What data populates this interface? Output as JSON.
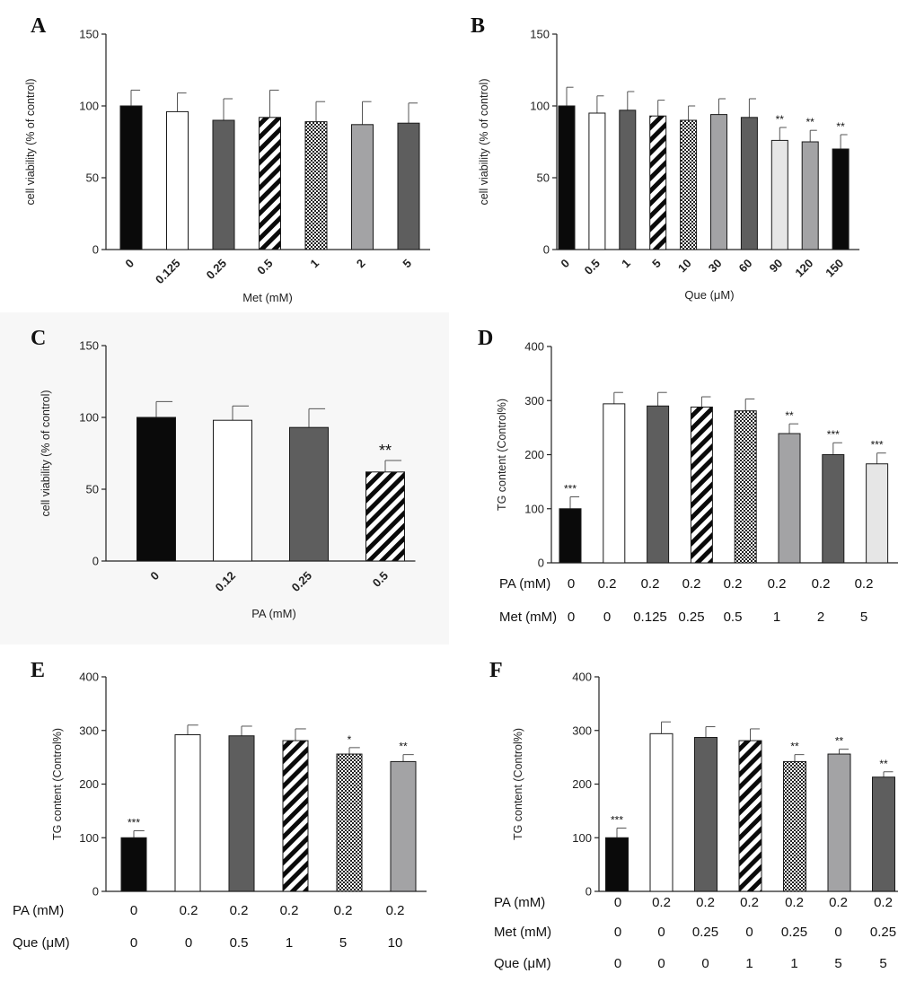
{
  "chart_data": [
    {
      "panel": "A",
      "type": "bar",
      "ylabel": "cell viability (% of control)",
      "xlabel": "Met (mM)",
      "ylim": [
        0,
        150
      ],
      "yticks": [
        0,
        50,
        100,
        150
      ],
      "categories": [
        "0",
        "0.125",
        "0.25",
        "0.5",
        "1",
        "2",
        "5"
      ],
      "values": [
        100,
        96,
        90,
        92,
        89,
        87,
        88
      ],
      "errors": [
        11,
        13,
        15,
        19,
        14,
        16,
        14
      ],
      "fills": [
        "black",
        "white",
        "dark",
        "diag",
        "check",
        "light",
        "dark"
      ],
      "annotations": [
        "",
        "",
        "",
        "",
        "",
        "",
        ""
      ]
    },
    {
      "panel": "B",
      "type": "bar",
      "ylabel": "cell viability (% of control)",
      "xlabel": "Que (μM)",
      "ylim": [
        0,
        150
      ],
      "yticks": [
        0,
        50,
        100,
        150
      ],
      "categories": [
        "0",
        "0.5",
        "1",
        "5",
        "10",
        "30",
        "60",
        "90",
        "120",
        "150"
      ],
      "values": [
        100,
        95,
        97,
        93,
        90,
        94,
        92,
        76,
        75,
        70
      ],
      "errors": [
        13,
        12,
        13,
        11,
        10,
        11,
        13,
        9,
        8,
        10
      ],
      "fills": [
        "black",
        "white",
        "dark",
        "diag",
        "check",
        "light",
        "dark",
        "pale",
        "light",
        "black"
      ],
      "annotations": [
        "",
        "",
        "",
        "",
        "",
        "",
        "",
        "**",
        "**",
        "**"
      ]
    },
    {
      "panel": "C",
      "type": "bar",
      "ylabel": "cell viability (% of control)",
      "xlabel": "PA (mM)",
      "ylim": [
        0,
        150
      ],
      "yticks": [
        0,
        50,
        100,
        150
      ],
      "categories": [
        "0",
        "0.12",
        "0.25",
        "0.5"
      ],
      "values": [
        100,
        98,
        93,
        62
      ],
      "errors": [
        11,
        10,
        13,
        8
      ],
      "fills": [
        "black",
        "white",
        "dark",
        "diag"
      ],
      "annotations": [
        "",
        "",
        "",
        "**"
      ]
    },
    {
      "panel": "D",
      "type": "bar",
      "ylabel": "TG content (Control%)",
      "ylim": [
        0,
        400
      ],
      "yticks": [
        0,
        100,
        200,
        300,
        400
      ],
      "values": [
        100,
        294,
        290,
        288,
        281,
        239,
        200,
        183
      ],
      "errors": [
        22,
        21,
        25,
        19,
        22,
        18,
        22,
        20
      ],
      "fills": [
        "black",
        "white",
        "dark",
        "diag",
        "check",
        "light",
        "dark",
        "pale"
      ],
      "annotations": [
        "***",
        "",
        "",
        "",
        "",
        "**",
        "***",
        "***"
      ],
      "table": [
        {
          "label": "PA (mM)",
          "values": [
            "0",
            "0.2",
            "0.2",
            "0.2",
            "0.2",
            "0.2",
            "0.2",
            "0.2"
          ]
        },
        {
          "label": "Met (mM)",
          "values": [
            "0",
            "0",
            "0.125",
            "0.25",
            "0.5",
            "1",
            "2",
            "5"
          ]
        }
      ]
    },
    {
      "panel": "E",
      "type": "bar",
      "ylabel": "TG content (Control%)",
      "ylim": [
        0,
        400
      ],
      "yticks": [
        0,
        100,
        200,
        300,
        400
      ],
      "values": [
        100,
        292,
        290,
        281,
        256,
        242
      ],
      "errors": [
        13,
        18,
        18,
        22,
        12,
        13
      ],
      "fills": [
        "black",
        "white",
        "dark",
        "diag",
        "check",
        "light"
      ],
      "annotations": [
        "***",
        "",
        "",
        "",
        "*",
        "**"
      ],
      "table": [
        {
          "label": "PA (mM)",
          "values": [
            "0",
            "0.2",
            "0.2",
            "0.2",
            "0.2",
            "0.2"
          ]
        },
        {
          "label": "Que (μM)",
          "values": [
            "0",
            "0",
            "0.5",
            "1",
            "5",
            "10"
          ]
        }
      ]
    },
    {
      "panel": "F",
      "type": "bar",
      "ylabel": "TG content (Control%)",
      "ylim": [
        0,
        400
      ],
      "yticks": [
        0,
        100,
        200,
        300,
        400
      ],
      "values": [
        100,
        294,
        287,
        281,
        242,
        256,
        213
      ],
      "errors": [
        18,
        22,
        20,
        22,
        13,
        9,
        10
      ],
      "fills": [
        "black",
        "white",
        "dark",
        "diag",
        "check",
        "light",
        "dark"
      ],
      "annotations": [
        "***",
        "",
        "",
        "",
        "**",
        "**",
        "**"
      ],
      "table": [
        {
          "label": "PA (mM)",
          "values": [
            "0",
            "0.2",
            "0.2",
            "0.2",
            "0.2",
            "0.2",
            "0.2"
          ]
        },
        {
          "label": "Met (mM)",
          "values": [
            "0",
            "0",
            "0.25",
            "0",
            "0.25",
            "0",
            "0.25"
          ]
        },
        {
          "label": "Que (μM)",
          "values": [
            "0",
            "0",
            "0",
            "1",
            "1",
            "5",
            "5"
          ]
        }
      ]
    }
  ],
  "colors": {
    "black": "#0a0a0a",
    "dark": "#5e5e5e",
    "light": "#a3a3a5",
    "pale": "#e6e6e6",
    "white": "#ffffff",
    "axis": "#222222"
  }
}
